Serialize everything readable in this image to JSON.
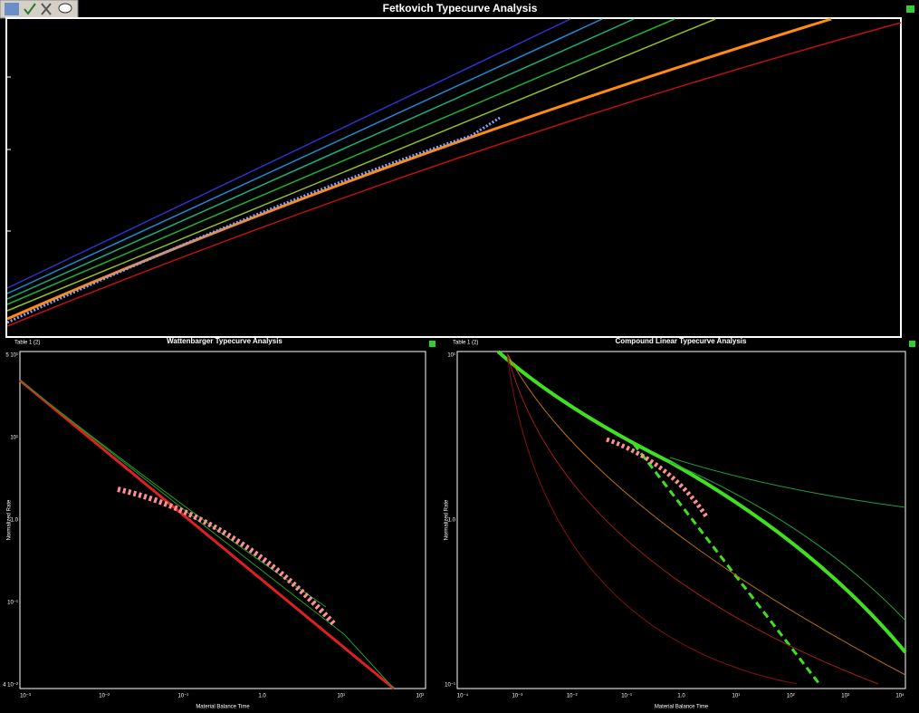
{
  "panels": [
    {
      "title": "Fetkovich Typecurve Analysis"
    },
    {
      "title": "Wattenbarger Typecurve Analysis",
      "table": "Table 1 (2)",
      "y_label": "Normalized Rate",
      "x_label": "Material Balance Time",
      "y_ticks": [
        "5 10¹",
        "10¹",
        "1.0",
        "10⁻¹",
        "4 10⁻²"
      ],
      "x_ticks": [
        "10⁻³",
        "10⁻²",
        "10⁻¹",
        "1.0",
        "10¹",
        "10²"
      ]
    },
    {
      "title": "Compound Linear Typecurve Analysis",
      "table": "Table 1 (2)",
      "y_label": "Normalized Rate",
      "x_label": "Material Balance Time",
      "y_ticks": [
        "10¹",
        "1.0",
        "10⁻¹"
      ],
      "x_ticks": [
        "10⁻⁴",
        "10⁻³",
        "10⁻²",
        "10⁻¹",
        "1.0",
        "10¹",
        "10²",
        "10³",
        "10⁴"
      ]
    }
  ]
}
